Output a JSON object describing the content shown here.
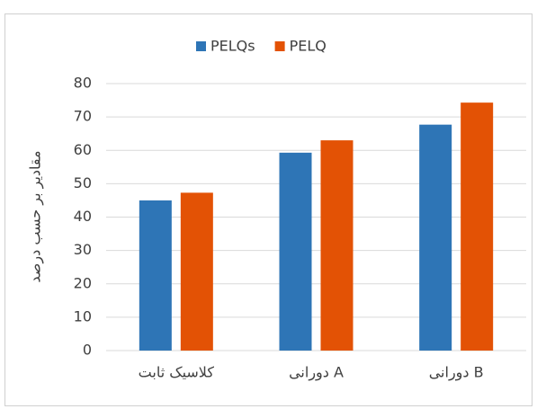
{
  "chart_data": {
    "type": "bar",
    "y_label": "مقادیر بر حسب درصد",
    "categories": [
      "کلاسیک ثابت",
      "دورانی A",
      "دورانی B"
    ],
    "series": [
      {
        "name": "PELQs",
        "color": "#2e75b6",
        "values": [
          45,
          59.3,
          67.7
        ]
      },
      {
        "name": "PELQ",
        "color": "#e35205",
        "values": [
          47.3,
          63,
          74.3
        ]
      }
    ],
    "ylim": [
      0,
      80
    ],
    "yticks": [
      0,
      10,
      20,
      30,
      40,
      50,
      60,
      70,
      80
    ],
    "grid": true,
    "legend": "top"
  }
}
